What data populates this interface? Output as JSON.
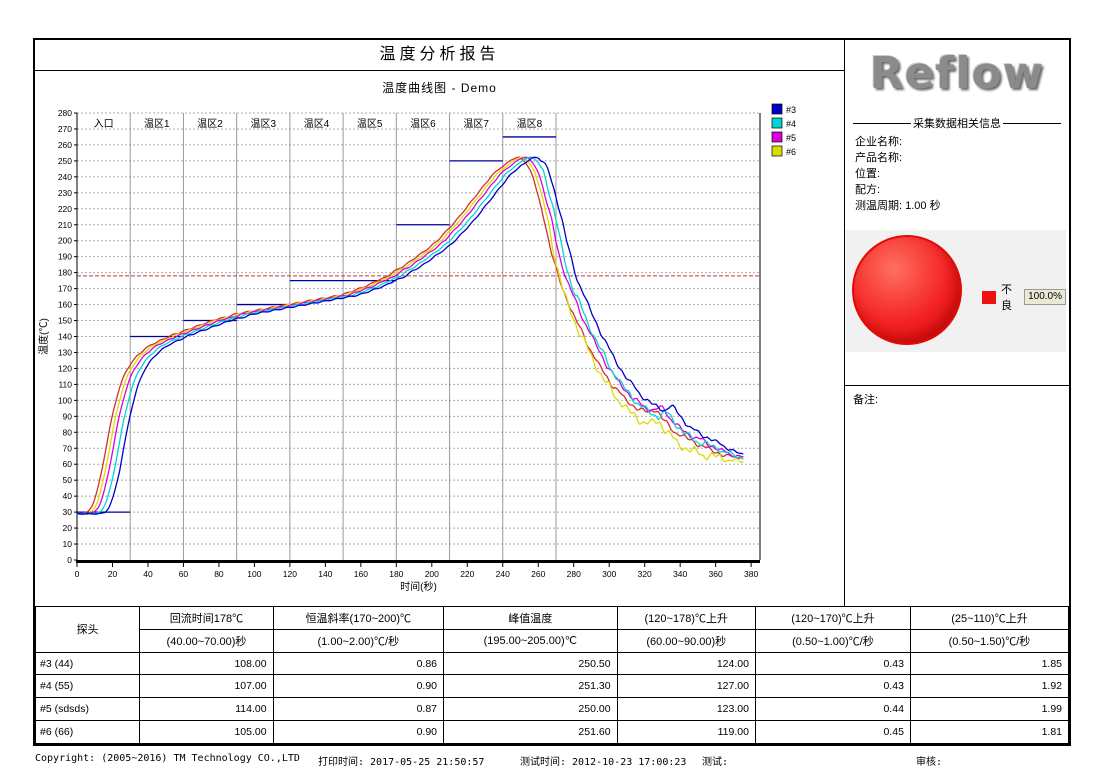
{
  "page": {
    "title": "温度分析报告"
  },
  "right_panel": {
    "logo_text": "Reflow",
    "info_section_title": "采集数据相关信息",
    "info_fields": [
      {
        "label": "企业名称:",
        "value": ""
      },
      {
        "label": "产品名称:",
        "value": ""
      },
      {
        "label": "位置:",
        "value": ""
      },
      {
        "label": "配方:",
        "value": ""
      },
      {
        "label": "测温周期:",
        "value": "1.00 秒"
      }
    ],
    "remark_label": "备注:"
  },
  "chart_data": [
    {
      "type": "line",
      "title": "温度曲线图 - Demo",
      "xlabel": "时间(秒)",
      "ylabel": "温度(℃)",
      "xlim": [
        0,
        385
      ],
      "ylim": [
        0,
        280
      ],
      "x_tick_step": 20,
      "x_tick_max": 380,
      "y_tick_step": 10,
      "y_tick_max": 280,
      "grid": "horizontal-dashed",
      "legend_position": "right-top",
      "reflow_ref_temp": 178,
      "reflow_ref_color": "#C83232",
      "setpoint_color": "#0000A0",
      "zones": [
        {
          "label": "入口",
          "t0": 0,
          "t1": 30,
          "setpoint": 30
        },
        {
          "label": "温区1",
          "t0": 30,
          "t1": 60,
          "setpoint": 140
        },
        {
          "label": "温区2",
          "t0": 60,
          "t1": 90,
          "setpoint": 150
        },
        {
          "label": "温区3",
          "t0": 90,
          "t1": 120,
          "setpoint": 160
        },
        {
          "label": "温区4",
          "t0": 120,
          "t1": 150,
          "setpoint": 175
        },
        {
          "label": "温区5",
          "t0": 150,
          "t1": 180,
          "setpoint": 175
        },
        {
          "label": "温区6",
          "t0": 180,
          "t1": 210,
          "setpoint": 210
        },
        {
          "label": "温区7",
          "t0": 210,
          "t1": 240,
          "setpoint": 250
        },
        {
          "label": "温区8",
          "t0": 240,
          "t1": 270,
          "setpoint": 265
        }
      ],
      "series": [
        {
          "name": "#3",
          "color": "#0000C8",
          "in_legend": true,
          "peak_temp": 250.5,
          "tshift": 4,
          "descent_offset": 0,
          "noise_amp": 1.6,
          "seed": 1
        },
        {
          "name": "#4",
          "color": "#00D5D5",
          "in_legend": true,
          "peak_temp": 251.3,
          "tshift": 1,
          "descent_offset": -4,
          "noise_amp": 2.4,
          "seed": 2
        },
        {
          "name": "#5",
          "color": "#DC00DC",
          "in_legend": true,
          "peak_temp": 250.0,
          "tshift": -2,
          "descent_offset": -0.5,
          "noise_amp": 1.8,
          "seed": 3
        },
        {
          "name": "#6",
          "color": "#DCDC00",
          "in_legend": true,
          "peak_temp": 251.6,
          "tshift": -4,
          "descent_offset": -9,
          "noise_amp": 3.2,
          "seed": 4
        },
        {
          "name": "ref",
          "color": "#D23030",
          "in_legend": false,
          "peak_temp": 249.0,
          "tshift": -6,
          "descent_offset": -1.5,
          "noise_amp": 1.8,
          "seed": 5
        }
      ],
      "base_profile": [
        [
          0,
          29
        ],
        [
          6,
          29
        ],
        [
          10,
          29
        ],
        [
          12,
          30
        ],
        [
          14,
          33
        ],
        [
          16,
          38
        ],
        [
          18,
          46
        ],
        [
          20,
          56
        ],
        [
          22,
          68
        ],
        [
          24,
          80
        ],
        [
          26,
          91
        ],
        [
          28,
          100
        ],
        [
          30,
          108
        ],
        [
          32,
          114
        ],
        [
          34,
          119
        ],
        [
          37,
          124
        ],
        [
          40,
          128
        ],
        [
          44,
          132
        ],
        [
          48,
          135
        ],
        [
          52,
          137
        ],
        [
          56,
          139
        ],
        [
          60,
          141
        ],
        [
          65,
          143
        ],
        [
          70,
          145
        ],
        [
          75,
          147
        ],
        [
          80,
          149
        ],
        [
          85,
          151
        ],
        [
          90,
          152
        ],
        [
          95,
          154
        ],
        [
          100,
          155
        ],
        [
          110,
          157
        ],
        [
          120,
          159
        ],
        [
          130,
          161
        ],
        [
          140,
          163
        ],
        [
          150,
          165
        ],
        [
          155,
          166
        ],
        [
          160,
          168
        ],
        [
          165,
          170
        ],
        [
          170,
          172
        ],
        [
          175,
          175
        ],
        [
          180,
          177
        ],
        [
          185,
          181
        ],
        [
          190,
          184
        ],
        [
          195,
          188
        ],
        [
          200,
          192
        ],
        [
          205,
          196
        ],
        [
          210,
          201
        ],
        [
          215,
          207
        ],
        [
          220,
          213
        ],
        [
          225,
          220
        ],
        [
          230,
          227
        ],
        [
          235,
          234
        ],
        [
          240,
          241
        ],
        [
          245,
          246
        ],
        [
          248,
          248
        ],
        [
          251,
          251
        ],
        [
          253,
          252
        ],
        [
          256,
          252
        ],
        [
          259,
          249
        ],
        [
          262,
          243
        ],
        [
          264,
          236
        ],
        [
          266,
          228
        ],
        [
          268,
          219
        ],
        [
          270,
          210
        ],
        [
          272,
          200
        ],
        [
          274,
          191
        ],
        [
          276,
          183
        ],
        [
          278,
          176
        ],
        [
          281,
          168
        ],
        [
          284,
          160
        ],
        [
          288,
          150
        ],
        [
          292,
          141
        ],
        [
          296,
          132
        ],
        [
          300,
          124
        ],
        [
          304,
          117
        ],
        [
          308,
          111
        ],
        [
          312,
          106
        ],
        [
          316,
          101
        ],
        [
          320,
          98
        ],
        [
          324,
          95
        ],
        [
          327,
          94
        ],
        [
          330,
          96
        ],
        [
          333,
          95
        ],
        [
          336,
          90
        ],
        [
          339,
          86
        ],
        [
          343,
          82
        ],
        [
          347,
          79
        ],
        [
          351,
          77
        ],
        [
          355,
          75
        ],
        [
          359,
          72
        ],
        [
          363,
          70
        ],
        [
          367,
          68
        ],
        [
          371,
          66
        ],
        [
          376,
          65
        ]
      ]
    },
    {
      "type": "pie",
      "slices": [
        {
          "label": "不良",
          "value": 100.0,
          "display": "100.0%",
          "color": "#EE1111"
        }
      ],
      "legend_position": "right"
    }
  ],
  "table": {
    "probe_header": "探头",
    "columns": [
      {
        "line1": "回流时间178℃",
        "line2": "(40.00~70.00)秒"
      },
      {
        "line1": "恒温斜率(170~200)℃",
        "line2": "(1.00~2.00)℃/秒"
      },
      {
        "line1": "峰值温度",
        "line2": "(195.00~205.00)℃"
      },
      {
        "line1": "(120~178)℃上升",
        "line2": "(60.00~90.00)秒"
      },
      {
        "line1": "(120~170)℃上升",
        "line2": "(0.50~1.00)℃/秒"
      },
      {
        "line1": "(25~110)℃上升",
        "line2": "(0.50~1.50)℃/秒"
      }
    ],
    "rows": [
      {
        "probe": "#3 (44)",
        "values": [
          "108.00",
          "0.86",
          "250.50",
          "124.00",
          "0.43",
          "1.85"
        ]
      },
      {
        "probe": "#4 (55)",
        "values": [
          "107.00",
          "0.90",
          "251.30",
          "127.00",
          "0.43",
          "1.92"
        ]
      },
      {
        "probe": "#5 (sdsds)",
        "values": [
          "114.00",
          "0.87",
          "250.00",
          "123.00",
          "0.44",
          "1.99"
        ]
      },
      {
        "probe": "#6 (66)",
        "values": [
          "105.00",
          "0.90",
          "251.60",
          "119.00",
          "0.45",
          "1.81"
        ]
      }
    ]
  },
  "footer": {
    "copyright": "Copyright: (2005~2016) TM Technology CO.,LTD",
    "print_time": "打印时间: 2017-05-25 21:50:57",
    "test_time": "测试时间: 2012-10-23 17:00:23",
    "tester": "测试:",
    "reviewer": "审核:"
  }
}
